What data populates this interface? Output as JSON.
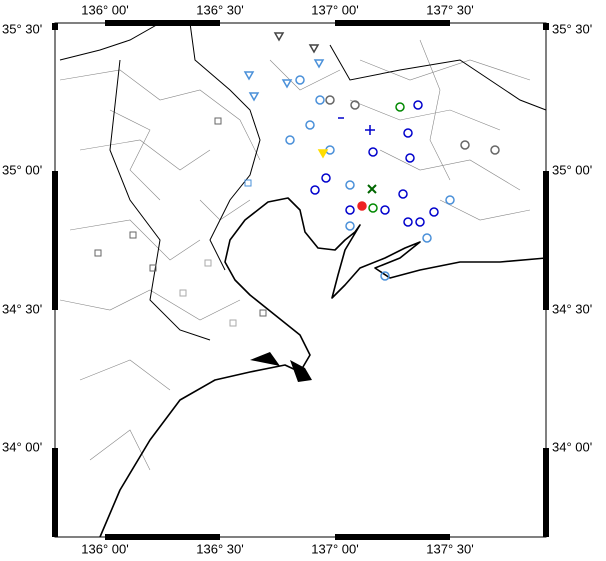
{
  "map": {
    "x_labels": [
      "136° 00'",
      "136° 30'",
      "137° 00'",
      "137° 30'"
    ],
    "y_labels": [
      "35° 30'",
      "35° 00'",
      "34° 30'",
      "34° 00'"
    ]
  }
}
